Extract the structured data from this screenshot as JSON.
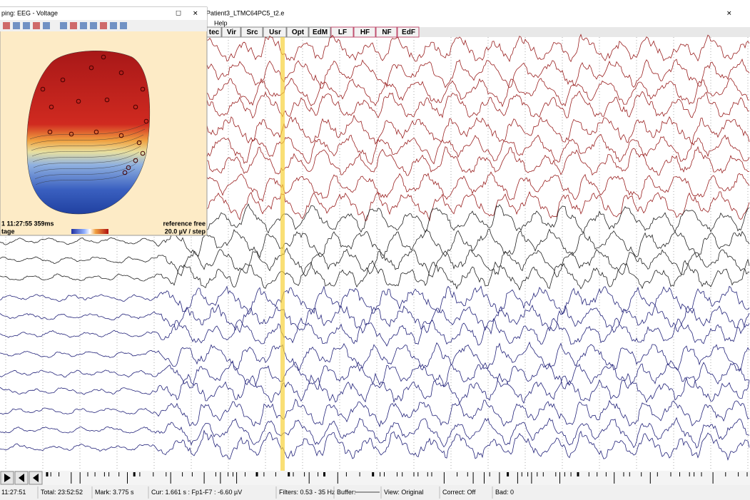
{
  "window": {
    "title": "Patient3_LTMC64PC5_t2.e",
    "menu": [
      "Help"
    ],
    "toolbar": [
      "tec",
      "Vir",
      "Src",
      "Usr",
      "Opt",
      "EdM",
      "LF",
      "HF",
      "NF",
      "EdF"
    ]
  },
  "map_window": {
    "title": "ping: EEG - Voltage",
    "time": "1 11:27:55 359ms",
    "reference": "reference free",
    "mode": "tage",
    "scale": "20.0 µV / step"
  },
  "status_bar": [
    "11:27:51",
    "Total: 23:52:52",
    "Mark: 3.775 s",
    "Cur: 1.661 s : Fp1-F7 : -6.60 µV",
    "Filters: 0.53 - 35 Hz",
    "Buffer:",
    "View: Original",
    "Correct: Off",
    "Bad: 0"
  ]
}
